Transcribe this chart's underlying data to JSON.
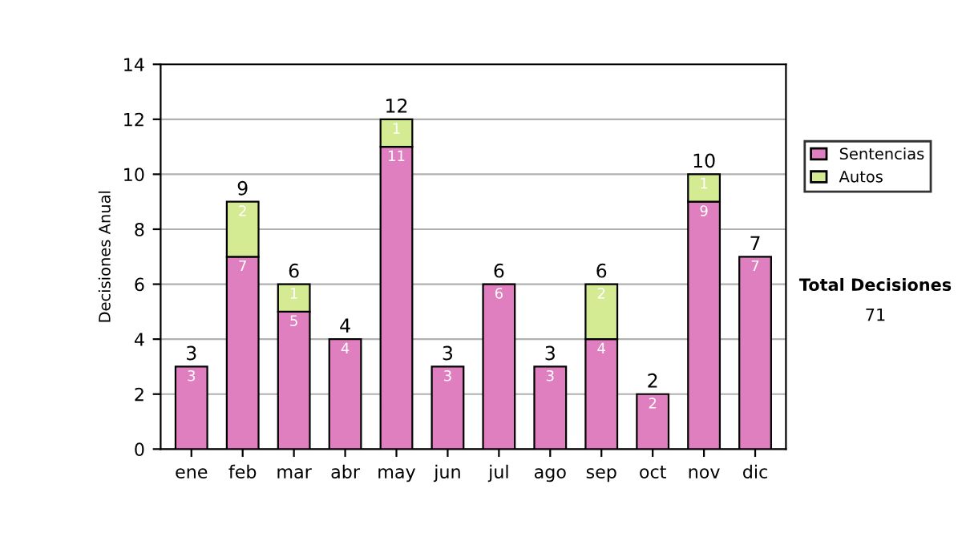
{
  "chart_data": {
    "type": "bar",
    "stacked": true,
    "ylabel": "Decisiones Anual",
    "categories": [
      "ene",
      "feb",
      "mar",
      "abr",
      "may",
      "jun",
      "jul",
      "ago",
      "sep",
      "oct",
      "nov",
      "dic"
    ],
    "series": [
      {
        "name": "Sentencias",
        "color": "#e07fc0",
        "values": [
          3,
          7,
          5,
          4,
          11,
          3,
          6,
          3,
          4,
          2,
          9,
          7
        ],
        "value_labels": [
          "3",
          "7",
          "5",
          "4",
          "11",
          "3",
          "6",
          "3",
          "4",
          "2",
          "9",
          "7"
        ]
      },
      {
        "name": "Autos",
        "color": "#d4eb94",
        "values": [
          null,
          2,
          1,
          null,
          1,
          null,
          null,
          null,
          2,
          null,
          1,
          null
        ],
        "value_labels": [
          null,
          "2",
          "1",
          null,
          "1",
          null,
          null,
          null,
          "2",
          null,
          "1",
          null
        ]
      }
    ],
    "totals": [
      "3",
      "9",
      "6",
      "4",
      "12",
      "3",
      "6",
      "3",
      "6",
      "2",
      "10",
      "7"
    ],
    "ylim": [
      0,
      14
    ],
    "yticks": [
      0,
      2,
      4,
      6,
      8,
      10,
      12,
      14
    ],
    "grid": "y",
    "legend": "right",
    "annotations": [
      "Total Decisiones",
      "71"
    ]
  }
}
